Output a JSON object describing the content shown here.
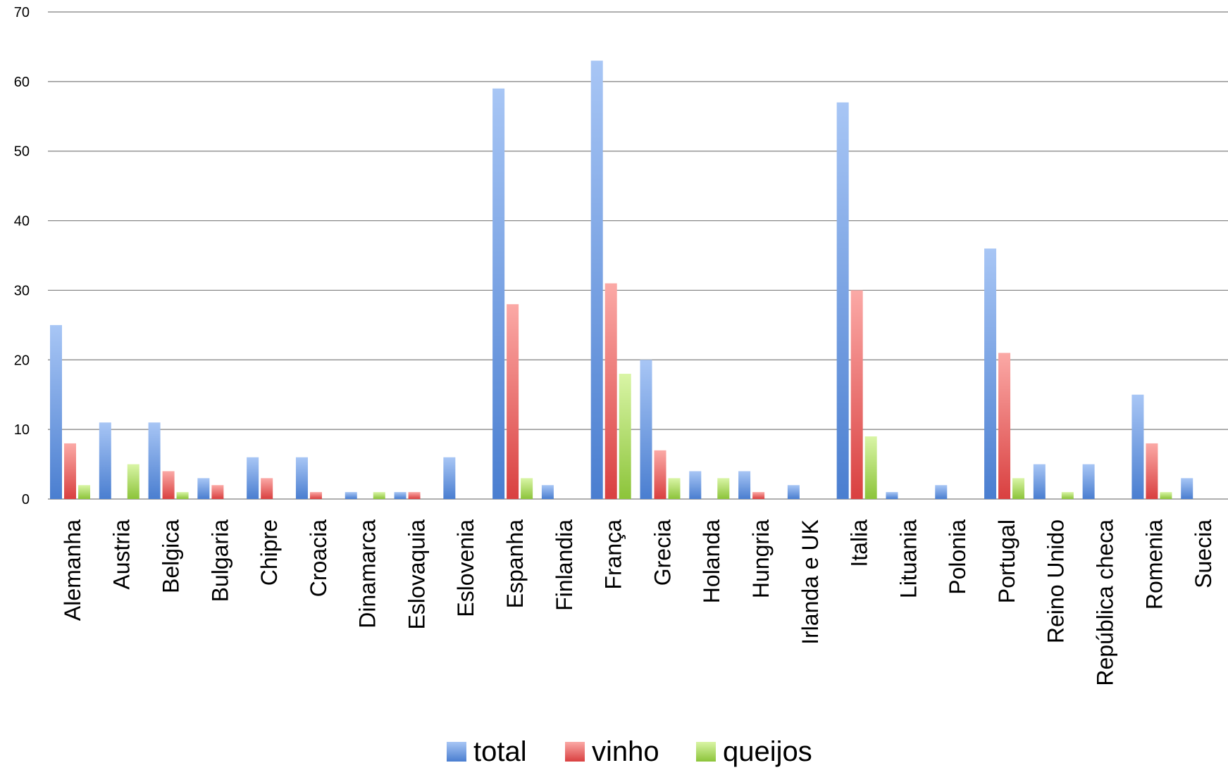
{
  "chart_data": {
    "type": "bar",
    "title": "",
    "xlabel": "",
    "ylabel": "",
    "ylim": [
      0,
      70
    ],
    "yticks": [
      "0",
      "10",
      "20",
      "30",
      "40",
      "50",
      "60",
      "70"
    ],
    "grid": true,
    "legend_position": "bottom",
    "categories": [
      "Alemanha",
      "Austria",
      "Belgica",
      "Bulgaria",
      "Chipre",
      "Croacia",
      "Dinamarca",
      "Eslovaquia",
      "Eslovenia",
      "Espanha",
      "Finlandia",
      "França",
      "Grecia",
      "Holanda",
      "Hungria",
      "Irlanda e UK",
      "Italia",
      "Lituania",
      "Polonia",
      "Portugal",
      "Reino Unido",
      "República checa",
      "Romenia",
      "Suecia"
    ],
    "series": [
      {
        "name": "total",
        "color": "#4a7ed0",
        "color_light": "#a8c6f5",
        "values": [
          25,
          11,
          11,
          3,
          6,
          6,
          1,
          1,
          6,
          59,
          2,
          63,
          20,
          4,
          4,
          2,
          57,
          1,
          2,
          36,
          5,
          5,
          15,
          3
        ]
      },
      {
        "name": "vinho",
        "color": "#d94040",
        "color_light": "#fba9a6",
        "values": [
          8,
          0,
          4,
          2,
          3,
          1,
          0,
          1,
          0,
          28,
          0,
          31,
          7,
          0,
          1,
          0,
          30,
          0,
          0,
          21,
          0,
          0,
          8,
          0
        ]
      },
      {
        "name": "queijos",
        "color": "#8cc43a",
        "color_light": "#d9f5a6",
        "values": [
          2,
          5,
          1,
          0,
          0,
          0,
          1,
          0,
          0,
          3,
          0,
          18,
          3,
          3,
          0,
          0,
          9,
          0,
          0,
          3,
          1,
          0,
          1,
          0
        ]
      }
    ]
  }
}
